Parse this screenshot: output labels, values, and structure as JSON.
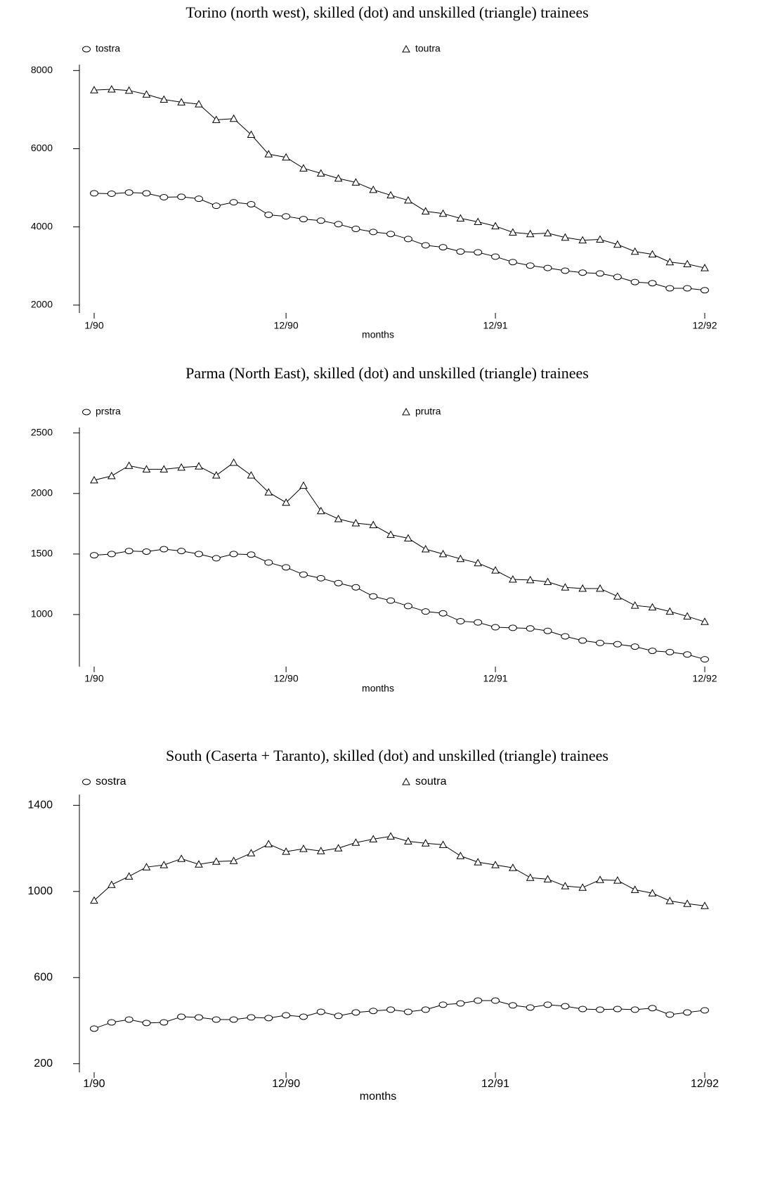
{
  "chart_data": [
    {
      "type": "line",
      "title": "Torino (north west), skilled (dot) and unskilled (triangle) trainees",
      "x_label": "months",
      "categories": [
        "1/90",
        null,
        null,
        null,
        null,
        null,
        null,
        null,
        null,
        null,
        null,
        "12/90",
        null,
        null,
        null,
        null,
        null,
        null,
        null,
        null,
        null,
        null,
        null,
        "12/91",
        null,
        null,
        null,
        null,
        null,
        null,
        null,
        null,
        null,
        null,
        null,
        "12/92"
      ],
      "ylim": [
        1800,
        8150
      ],
      "yticks": [
        2000,
        4000,
        6000,
        8000
      ],
      "series": [
        {
          "name": "tostra",
          "marker": "circle",
          "color": "#000000",
          "values": [
            4860,
            4850,
            4880,
            4860,
            4760,
            4770,
            4720,
            4540,
            4630,
            4580,
            4310,
            4270,
            4200,
            4160,
            4070,
            3950,
            3870,
            3820,
            3690,
            3530,
            3480,
            3370,
            3350,
            3240,
            3100,
            3010,
            2950,
            2880,
            2830,
            2810,
            2720,
            2590,
            2560,
            2430,
            2430,
            2380
          ]
        },
        {
          "name": "toutra",
          "marker": "triangle",
          "color": "#000000",
          "values": [
            7500,
            7520,
            7490,
            7390,
            7260,
            7190,
            7140,
            6740,
            6770,
            6360,
            5860,
            5780,
            5500,
            5370,
            5240,
            5140,
            4950,
            4810,
            4680,
            4400,
            4340,
            4220,
            4130,
            4020,
            3860,
            3820,
            3840,
            3730,
            3660,
            3680,
            3550,
            3370,
            3300,
            3100,
            3050,
            2950
          ]
        }
      ]
    },
    {
      "type": "line",
      "title": "Parma (North East), skilled (dot) and unskilled (triangle) trainees",
      "x_label": "months",
      "categories": [
        "1/90",
        null,
        null,
        null,
        null,
        null,
        null,
        null,
        null,
        null,
        null,
        "12/90",
        null,
        null,
        null,
        null,
        null,
        null,
        null,
        null,
        null,
        null,
        null,
        "12/91",
        null,
        null,
        null,
        null,
        null,
        null,
        null,
        null,
        null,
        null,
        null,
        "12/92"
      ],
      "ylim": [
        570,
        2545
      ],
      "yticks": [
        1000,
        1500,
        2000,
        2500
      ],
      "series": [
        {
          "name": "prstra",
          "marker": "circle",
          "color": "#000000",
          "values": [
            1490,
            1500,
            1525,
            1520,
            1540,
            1525,
            1500,
            1465,
            1500,
            1495,
            1430,
            1390,
            1330,
            1300,
            1260,
            1225,
            1150,
            1115,
            1070,
            1025,
            1010,
            945,
            935,
            895,
            890,
            885,
            865,
            820,
            785,
            765,
            755,
            735,
            700,
            690,
            670,
            630
          ]
        },
        {
          "name": "prutra",
          "marker": "triangle",
          "color": "#000000",
          "values": [
            2110,
            2145,
            2230,
            2200,
            2200,
            2215,
            2225,
            2150,
            2255,
            2150,
            2010,
            1925,
            2065,
            1855,
            1790,
            1755,
            1740,
            1660,
            1630,
            1540,
            1500,
            1460,
            1425,
            1365,
            1290,
            1285,
            1270,
            1225,
            1215,
            1215,
            1150,
            1075,
            1060,
            1025,
            985,
            940
          ]
        }
      ]
    },
    {
      "type": "line",
      "title": "South (Caserta + Taranto), skilled (dot) and unskilled (triangle) trainees",
      "x_label": "months",
      "categories": [
        "1/90",
        null,
        null,
        null,
        null,
        null,
        null,
        null,
        null,
        null,
        null,
        "12/90",
        null,
        null,
        null,
        null,
        null,
        null,
        null,
        null,
        null,
        null,
        null,
        "12/91",
        null,
        null,
        null,
        null,
        null,
        null,
        null,
        null,
        null,
        null,
        null,
        "12/92"
      ],
      "ylim": [
        160,
        1450
      ],
      "yticks": [
        200,
        600,
        1000,
        1400
      ],
      "series": [
        {
          "name": "sostra",
          "marker": "circle",
          "color": "#000000",
          "values": [
            363,
            392,
            405,
            389,
            392,
            418,
            415,
            405,
            405,
            415,
            412,
            425,
            418,
            441,
            422,
            438,
            445,
            451,
            441,
            451,
            474,
            480,
            493,
            493,
            471,
            461,
            474,
            467,
            454,
            451,
            454,
            451,
            458,
            428,
            438,
            448
          ]
        },
        {
          "name": "soutra",
          "marker": "triangle",
          "color": "#000000",
          "values": [
            958,
            1031,
            1070,
            1113,
            1123,
            1152,
            1126,
            1139,
            1142,
            1178,
            1220,
            1185,
            1198,
            1188,
            1201,
            1227,
            1243,
            1256,
            1233,
            1224,
            1217,
            1165,
            1136,
            1123,
            1110,
            1064,
            1057,
            1025,
            1018,
            1054,
            1051,
            1008,
            992,
            956,
            943,
            933
          ]
        }
      ]
    }
  ]
}
